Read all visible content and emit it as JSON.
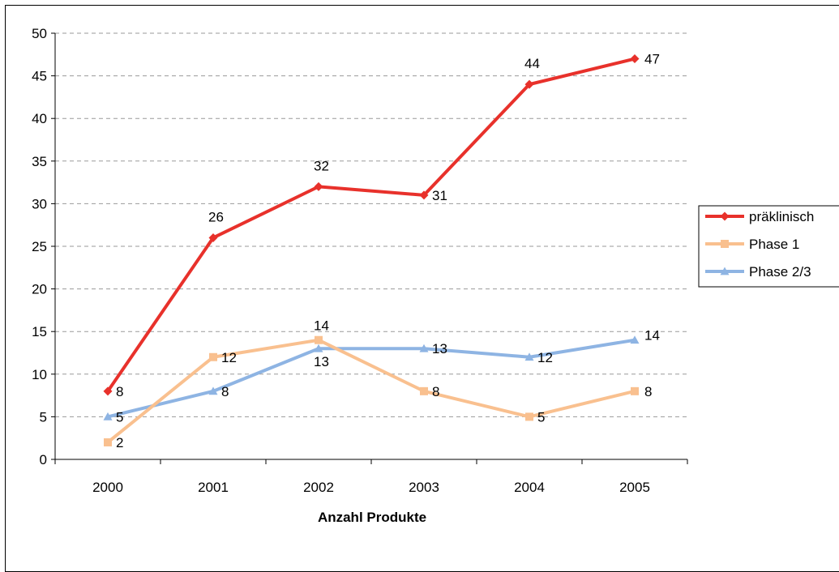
{
  "chart_data": {
    "type": "line",
    "title": "",
    "xlabel": "Anzahl Produkte",
    "ylabel": "",
    "categories": [
      "2000",
      "2001",
      "2002",
      "2003",
      "2004",
      "2005"
    ],
    "ylim": [
      0,
      50
    ],
    "ytick_step": 5,
    "grid": true,
    "legend_position": "right",
    "series": [
      {
        "name": "präklinisch",
        "values": [
          8,
          26,
          32,
          31,
          44,
          47
        ],
        "color": "#e8312b",
        "marker": "diamond"
      },
      {
        "name": "Phase 1",
        "values": [
          2,
          12,
          14,
          8,
          5,
          8
        ],
        "color": "#f9c08f",
        "marker": "square"
      },
      {
        "name": "Phase 2/3",
        "values": [
          5,
          8,
          13,
          13,
          12,
          14
        ],
        "color": "#8eb4e3",
        "marker": "triangle"
      }
    ]
  }
}
